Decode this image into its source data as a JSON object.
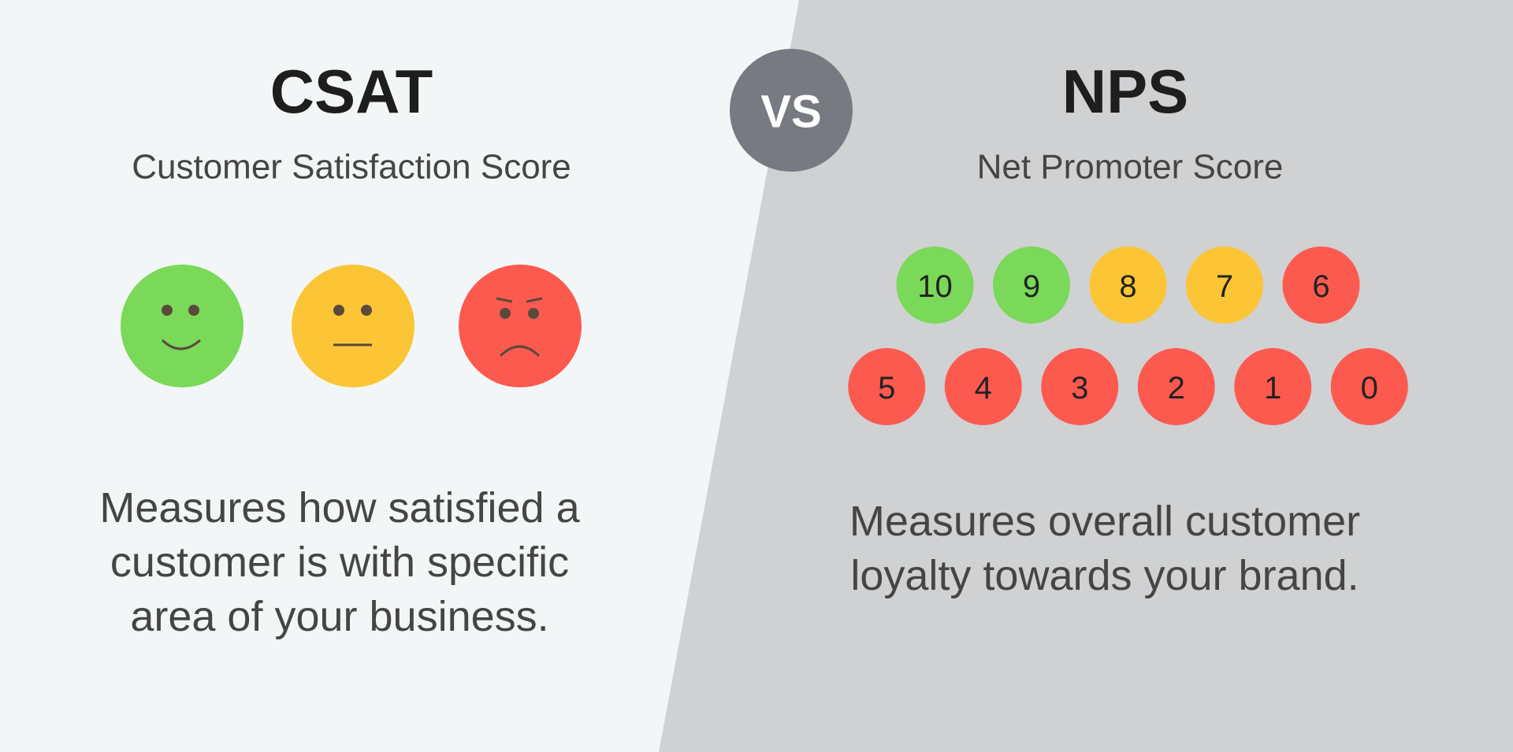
{
  "csat": {
    "title": "CSAT",
    "subtitle": "Customer Satisfaction Score",
    "description": [
      "Measures how satisfied a",
      "customer is with specific",
      "area of your business."
    ]
  },
  "vs": "VS",
  "nps": {
    "title": "NPS",
    "subtitle": "Net Promoter Score",
    "rows": [
      [
        {
          "label": "10",
          "color": "#7ad958"
        },
        {
          "label": "9",
          "color": "#7ad958"
        },
        {
          "label": "8",
          "color": "#fbc536"
        },
        {
          "label": "7",
          "color": "#fbc536"
        },
        {
          "label": "6",
          "color": "#fd5a4f"
        }
      ],
      [
        {
          "label": "5",
          "color": "#fd5a4f"
        },
        {
          "label": "4",
          "color": "#fd5a4f"
        },
        {
          "label": "3",
          "color": "#fd5a4f"
        },
        {
          "label": "2",
          "color": "#fd5a4f"
        },
        {
          "label": "1",
          "color": "#fd5a4f"
        },
        {
          "label": "0",
          "color": "#fd5a4f"
        }
      ]
    ],
    "description": [
      "Measures overall customer",
      "loyalty towards your brand."
    ]
  }
}
